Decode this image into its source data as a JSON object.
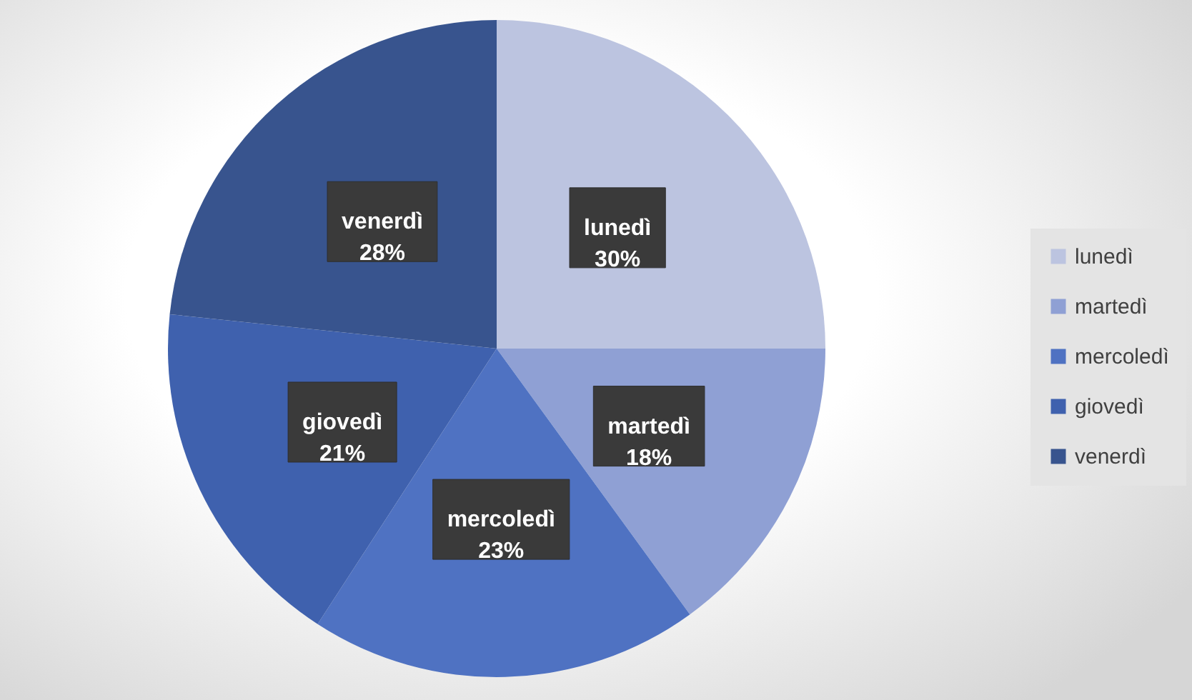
{
  "chart_data": {
    "type": "pie",
    "categories": [
      "lunedì",
      "martedì",
      "mercoledì",
      "giovedì",
      "venerdì"
    ],
    "values": [
      30,
      18,
      23,
      21,
      28
    ],
    "value_labels": [
      "30%",
      "18%",
      "23%",
      "21%",
      "28%"
    ],
    "colors": [
      "#bcc4e0",
      "#8fa0d4",
      "#4f72c2",
      "#3f61ae",
      "#38548e"
    ],
    "legend": "right"
  }
}
